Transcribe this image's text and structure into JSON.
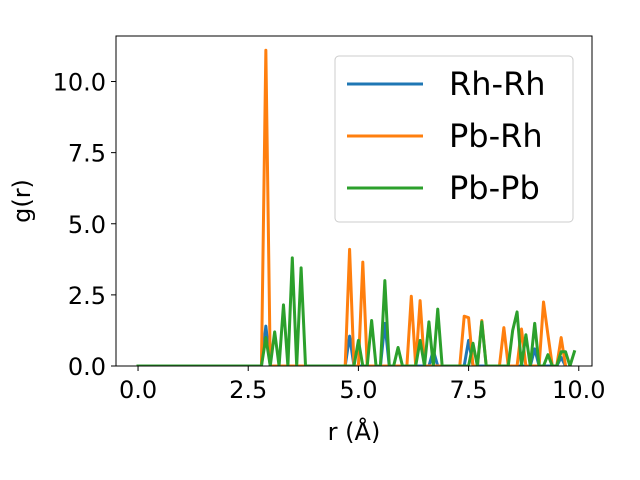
{
  "chart_data": {
    "type": "line",
    "xlabel": "r (Å)",
    "ylabel": "g(r)",
    "xlim": [
      -0.5,
      10.3
    ],
    "ylim": [
      0,
      11.6
    ],
    "xticks": [
      0.0,
      2.5,
      5.0,
      7.5,
      10.0
    ],
    "xtick_labels": [
      "0.0",
      "2.5",
      "5.0",
      "7.5",
      "10.0"
    ],
    "yticks": [
      0.0,
      2.5,
      5.0,
      7.5,
      10.0
    ],
    "ytick_labels": [
      "0.0",
      "2.5",
      "5.0",
      "7.5",
      "10.0"
    ],
    "grid": false,
    "legend_position": "top-right",
    "series": [
      {
        "name": "Rh-Rh",
        "color": "#1f77b4",
        "x": [
          0.0,
          2.8,
          2.9,
          3.0,
          4.7,
          4.8,
          4.9,
          5.5,
          5.6,
          5.7,
          6.6,
          6.7,
          6.8,
          7.4,
          7.5,
          7.6,
          8.9,
          9.0,
          9.1,
          9.5,
          9.6,
          9.7
        ],
        "y": [
          0.0,
          0.0,
          1.4,
          0.0,
          0.0,
          1.05,
          0.0,
          0.0,
          1.5,
          0.0,
          0.0,
          0.55,
          0.0,
          0.0,
          0.9,
          0.0,
          0.0,
          0.6,
          0.0,
          0.0,
          0.3,
          0.0
        ]
      },
      {
        "name": "Pb-Rh",
        "color": "#ff7f0e",
        "x": [
          0.0,
          2.8,
          2.9,
          3.0,
          4.7,
          4.8,
          4.9,
          5.0,
          5.1,
          5.2,
          6.1,
          6.2,
          6.3,
          6.4,
          6.5,
          7.3,
          7.4,
          7.5,
          7.6,
          7.7,
          7.8,
          7.9,
          8.2,
          8.3,
          8.4,
          8.6,
          8.7,
          8.8,
          9.0,
          9.1,
          9.2,
          9.3,
          9.4,
          9.5,
          9.6,
          9.7
        ],
        "y": [
          0.0,
          0.0,
          11.1,
          0.0,
          0.0,
          4.1,
          0.0,
          0.0,
          3.65,
          0.0,
          0.0,
          2.45,
          0.0,
          2.3,
          0.0,
          0.0,
          1.75,
          1.7,
          0.0,
          0.0,
          1.6,
          0.0,
          0.0,
          1.35,
          0.0,
          0.0,
          1.3,
          0.0,
          0.0,
          0.0,
          2.25,
          1.1,
          0.0,
          0.0,
          1.0,
          0.0
        ]
      },
      {
        "name": "Pb-Pb",
        "color": "#2ca02c",
        "x": [
          0.0,
          2.8,
          2.9,
          3.0,
          3.1,
          3.2,
          3.3,
          3.4,
          3.5,
          3.6,
          3.7,
          3.8,
          4.9,
          5.0,
          5.1,
          5.2,
          5.3,
          5.4,
          5.5,
          5.6,
          5.7,
          5.8,
          5.9,
          6.0,
          6.3,
          6.4,
          6.5,
          6.6,
          6.7,
          6.8,
          6.9,
          7.0,
          7.5,
          7.6,
          7.7,
          7.8,
          7.9,
          8.4,
          8.5,
          8.6,
          8.7,
          8.8,
          8.9,
          9.0,
          9.1,
          9.2,
          9.3,
          9.4,
          9.5,
          9.6,
          9.7,
          9.8,
          9.9
        ],
        "y": [
          0.0,
          0.0,
          1.0,
          0.0,
          1.2,
          0.0,
          2.15,
          0.0,
          3.8,
          0.0,
          3.45,
          0.0,
          0.0,
          0.9,
          0.0,
          0.0,
          1.6,
          0.0,
          0.0,
          3.0,
          0.0,
          0.0,
          0.65,
          0.0,
          0.0,
          0.9,
          0.0,
          1.55,
          0.0,
          2.0,
          0.0,
          0.0,
          0.0,
          0.8,
          0.0,
          1.55,
          0.0,
          0.0,
          1.25,
          1.9,
          0.0,
          1.1,
          0.0,
          1.5,
          0.0,
          0.0,
          0.4,
          0.0,
          0.0,
          0.5,
          0.5,
          0.0,
          0.5
        ]
      }
    ]
  }
}
